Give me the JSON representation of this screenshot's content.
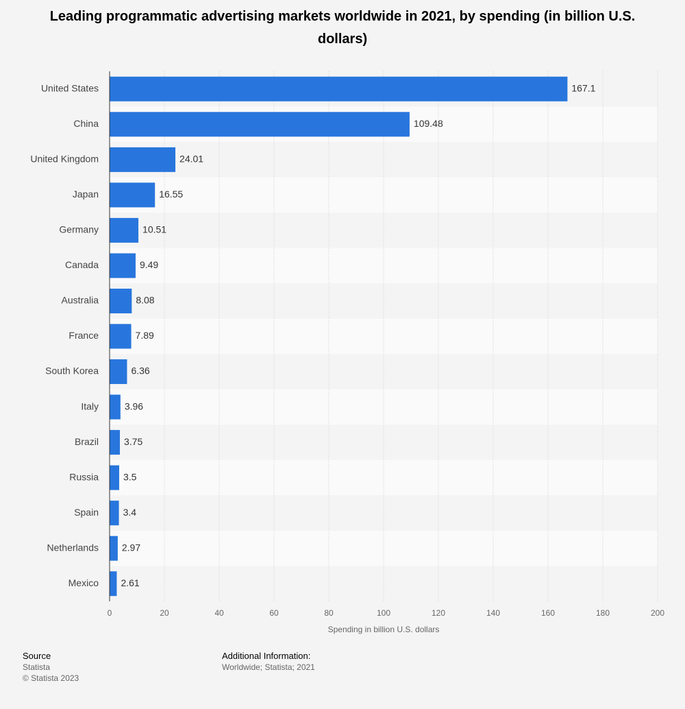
{
  "chart_data": {
    "type": "bar",
    "orientation": "horizontal",
    "title": "Leading programmatic advertising markets worldwide in 2021, by spending (in billion U.S. dollars)",
    "categories": [
      "United States",
      "China",
      "United Kingdom",
      "Japan",
      "Germany",
      "Canada",
      "Australia",
      "France",
      "South Korea",
      "Italy",
      "Brazil",
      "Russia",
      "Spain",
      "Netherlands",
      "Mexico"
    ],
    "values": [
      167.1,
      109.48,
      24.01,
      16.55,
      10.51,
      9.49,
      8.08,
      7.89,
      6.36,
      3.96,
      3.75,
      3.5,
      3.4,
      2.97,
      2.61
    ],
    "color": "#2876dd",
    "xlim": [
      0,
      200
    ],
    "xticks": [
      0,
      20,
      40,
      60,
      80,
      100,
      120,
      140,
      160,
      180,
      200
    ],
    "xlabel": "Spending in billion U.S. dollars",
    "grid": true
  },
  "footer": {
    "source_heading": "Source",
    "source_lines": [
      "Statista",
      "© Statista 2023"
    ],
    "info_heading": "Additional Information:",
    "info_text": "Worldwide; Statista; 2021"
  }
}
